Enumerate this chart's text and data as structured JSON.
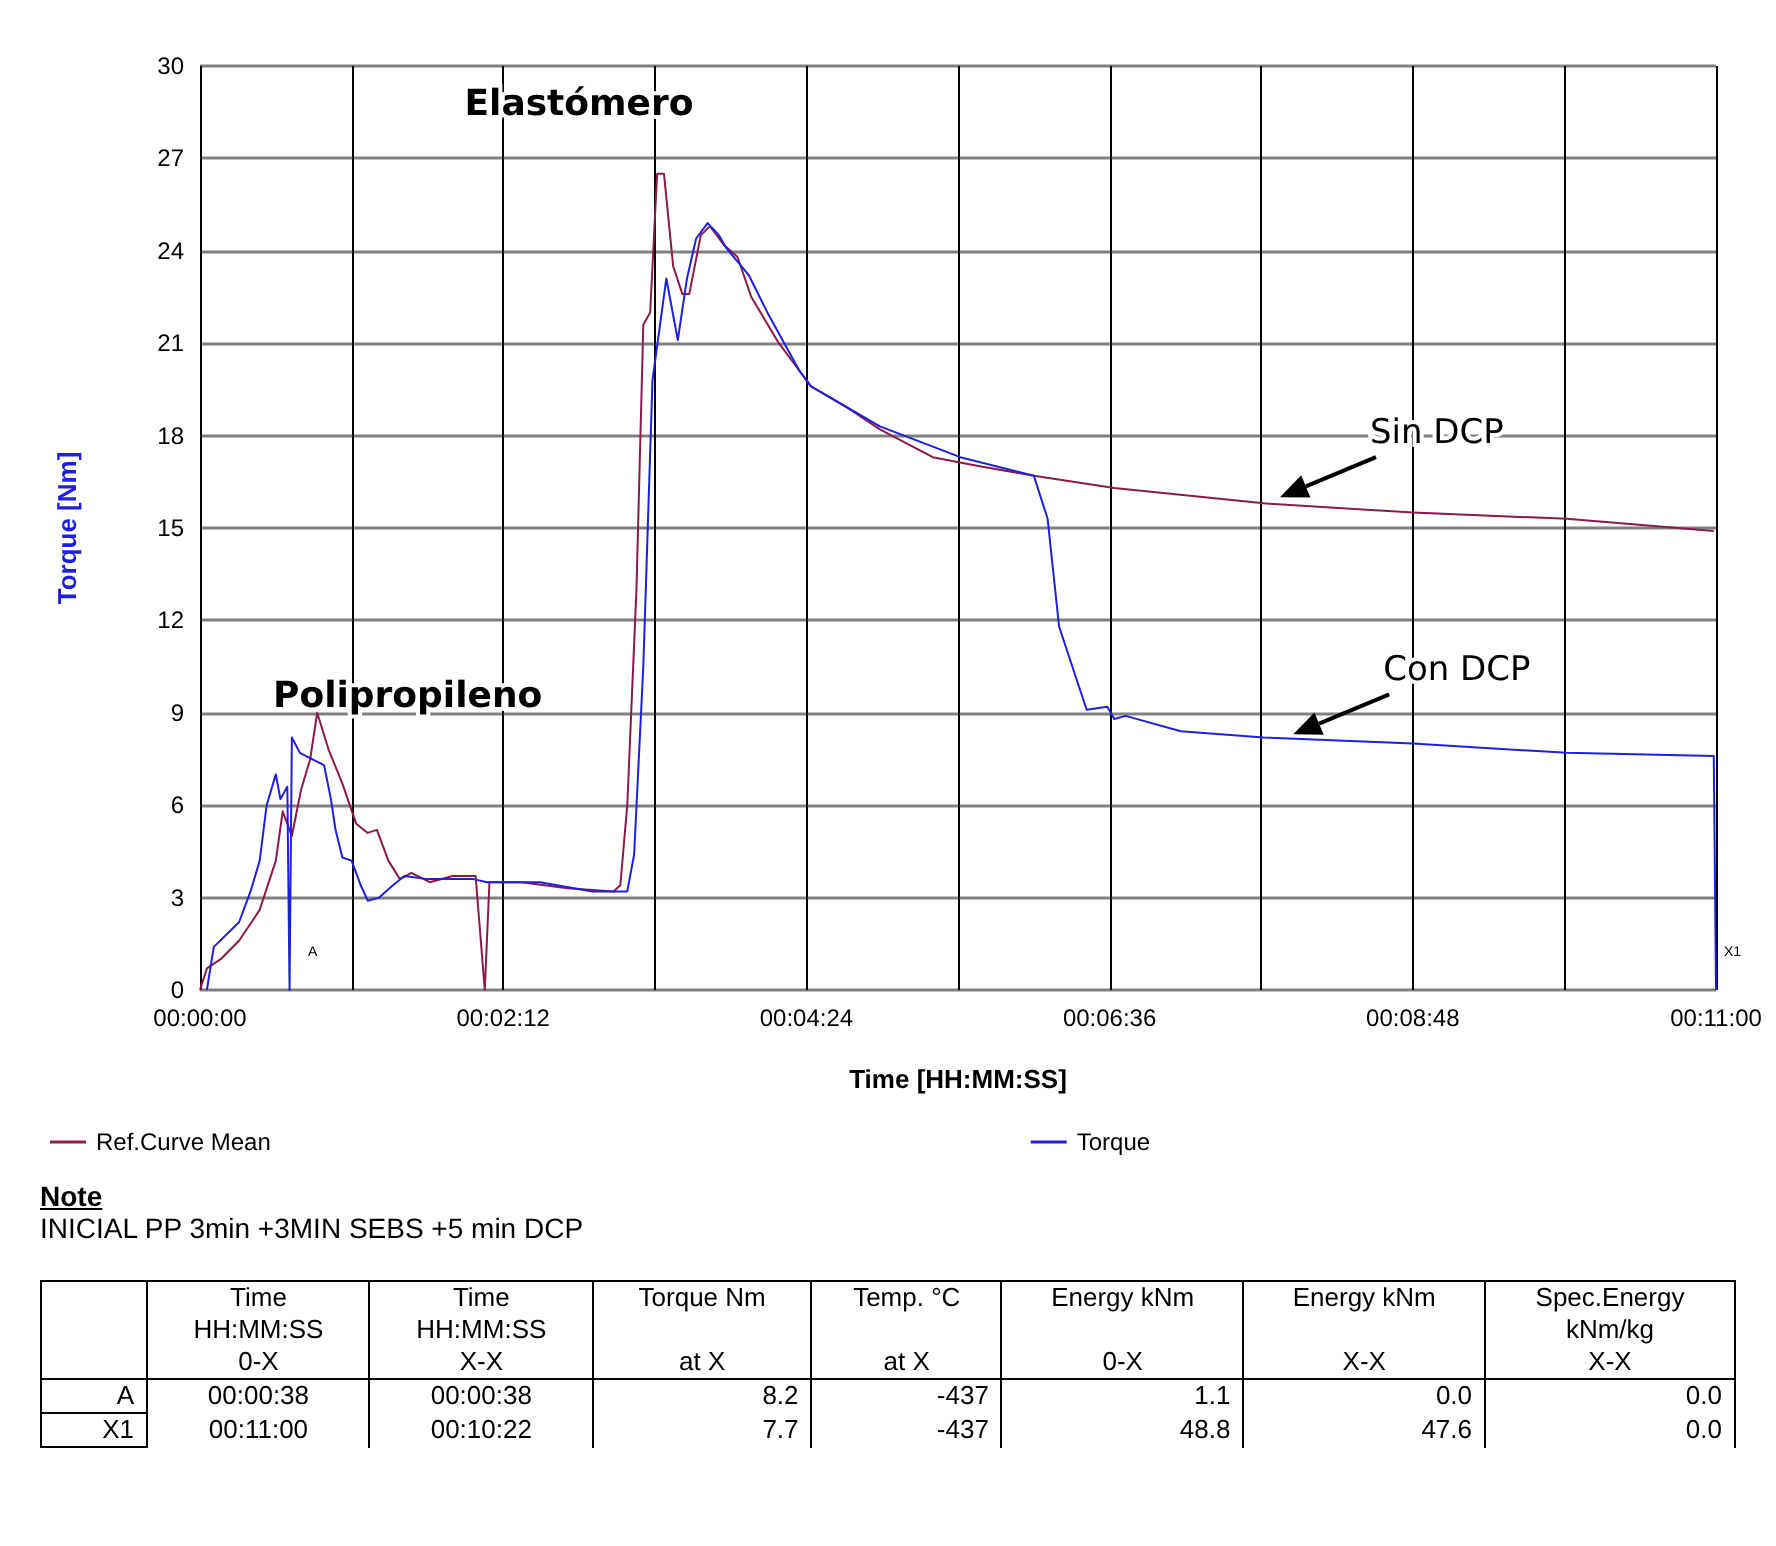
{
  "chart_data": [
    {
      "type": "line",
      "xlabel": "Time [HH:MM:SS]",
      "ylabel": "Torque [Nm]",
      "xlim": [
        0,
        0.18333
      ],
      "xticks": [
        {
          "value": 0,
          "label": "00:00:00"
        },
        {
          "value": 0.01833,
          "label": null
        },
        {
          "value": 0.03667,
          "label": "00:02:12"
        },
        {
          "value": 0.055,
          "label": null
        },
        {
          "value": 0.07333,
          "label": "00:04:24"
        },
        {
          "value": 0.09167,
          "label": null
        },
        {
          "value": 0.11,
          "label": "00:06:36"
        },
        {
          "value": 0.12833,
          "label": null
        },
        {
          "value": 0.14667,
          "label": "00:08:48"
        },
        {
          "value": 0.165,
          "label": null
        },
        {
          "value": 0.18333,
          "label": "00:11:00"
        }
      ],
      "ylim": [
        0,
        30
      ],
      "yticks": [
        0,
        3,
        6,
        9,
        12,
        15,
        18,
        21,
        24,
        27,
        30
      ],
      "grid": true,
      "legend": "bottom",
      "line_style": "solid",
      "series": [
        {
          "name": "Ref.Curve Mean",
          "color": "#8b1a4a",
          "x": [
            0,
            0.00083,
            0.0025,
            0.00472,
            0.00722,
            0.00917,
            0.01,
            0.01111,
            0.01222,
            0.01333,
            0.01417,
            0.01556,
            0.01722,
            0.01889,
            0.02028,
            0.02139,
            0.02278,
            0.02417,
            0.02556,
            0.02778,
            0.03056,
            0.03333,
            0.03444,
            0.035,
            0.03889,
            0.04444,
            0.05,
            0.05083,
            0.05167,
            0.05278,
            0.05361,
            0.05444,
            0.05528,
            0.05611,
            0.05722,
            0.05833,
            0.05917,
            0.06056,
            0.06167,
            0.06333,
            0.065,
            0.06667,
            0.07,
            0.07278,
            0.07389,
            0.07833,
            0.08222,
            0.08861,
            0.09444,
            0.10083,
            0.11056,
            0.12861,
            0.14667,
            0.16528,
            0.18306
          ],
          "values": [
            0,
            0.7,
            1.0,
            1.6,
            2.6,
            4.2,
            5.8,
            5.0,
            6.5,
            7.5,
            9.0,
            7.8,
            6.7,
            5.4,
            5.1,
            5.2,
            4.2,
            3.6,
            3.8,
            3.5,
            3.7,
            3.7,
            0.0,
            3.5,
            3.5,
            3.3,
            3.2,
            3.4,
            6,
            13,
            21.6,
            22,
            26.5,
            26.5,
            23.5,
            22.6,
            22.6,
            24.5,
            24.8,
            24.2,
            23.8,
            22.5,
            21,
            20,
            19.6,
            18.9,
            18.2,
            17.3,
            17.0,
            16.7,
            16.3,
            15.8,
            15.5,
            15.3,
            14.9
          ]
        },
        {
          "name": "Torque",
          "color": "#1f1fe0",
          "x": [
            0.00083,
            0.00167,
            0.00472,
            0.00611,
            0.00722,
            0.00806,
            0.00917,
            0.00972,
            0.01056,
            0.01083,
            0.01111,
            0.01208,
            0.01278,
            0.015,
            0.01583,
            0.01639,
            0.01722,
            0.01833,
            0.01944,
            0.02028,
            0.02167,
            0.02333,
            0.02472,
            0.0275,
            0.03306,
            0.03472,
            0.04111,
            0.0475,
            0.05167,
            0.0525,
            0.05361,
            0.05472,
            0.05639,
            0.05778,
            0.05889,
            0.06,
            0.06139,
            0.06278,
            0.06361,
            0.06639,
            0.06861,
            0.0725,
            0.07389,
            0.08222,
            0.09194,
            0.10083,
            0.1025,
            0.10389,
            0.10722,
            0.10972,
            0.11056,
            0.11194,
            0.11861,
            0.12861,
            0.14667,
            0.16528,
            0.18306,
            0.18333
          ],
          "values": [
            0,
            1.4,
            2.2,
            3.2,
            4.2,
            6.0,
            7.0,
            6.2,
            6.6,
            0,
            8.2,
            7.7,
            7.6,
            7.3,
            6.2,
            5.2,
            4.3,
            4.2,
            3.4,
            2.9,
            3.0,
            3.4,
            3.7,
            3.6,
            3.6,
            3.5,
            3.5,
            3.2,
            3.2,
            4.4,
            10.5,
            19.8,
            23.1,
            21.1,
            23.1,
            24.4,
            24.9,
            24.5,
            24.1,
            23.2,
            22.0,
            20.1,
            19.6,
            18.3,
            17.3,
            16.7,
            15.3,
            11.8,
            9.1,
            9.2,
            8.8,
            8.9,
            8.4,
            8.2,
            8.0,
            7.7,
            7.6,
            0
          ]
        }
      ],
      "annotations": [
        "Polipropileno",
        "Elastómero",
        {
          "text": "Sin DCP",
          "x": 0.1306,
          "y": 16.0
        },
        {
          "text": "Con DCP",
          "x": 0.1322,
          "y": 8.3
        },
        {
          "text": "A",
          "x": 0.0121,
          "y": 1.2
        },
        {
          "text": "X1",
          "x": 0.18333,
          "y": 1.2
        }
      ]
    },
    {
      "type": "other",
      "title": "Note",
      "annotations": [
        "INICIAL PP 3min +3MIN SEBS +5 min DCP"
      ],
      "categories": [
        null,
        "Time\nHH:MM:SS\n0-X",
        "Time\nHH:MM:SS\nX-X",
        "Torque Nm\n\nat X",
        "Temp. °C\n\nat X",
        "Energy kNm\n\n0-X",
        "Energy kNm\n\nX-X",
        "Spec.Energy\nkNm/kg\nX-X"
      ],
      "y_categories": [
        "A",
        "X1"
      ],
      "cell_labels": [
        [
          "00:00:38",
          "00:00:38",
          "8.2",
          "-437",
          "1.1",
          "0.0",
          "0.0"
        ],
        [
          "00:11:00",
          "00:10:22",
          "7.7",
          "-437",
          "48.8",
          "47.6",
          "0.0"
        ]
      ]
    }
  ]
}
